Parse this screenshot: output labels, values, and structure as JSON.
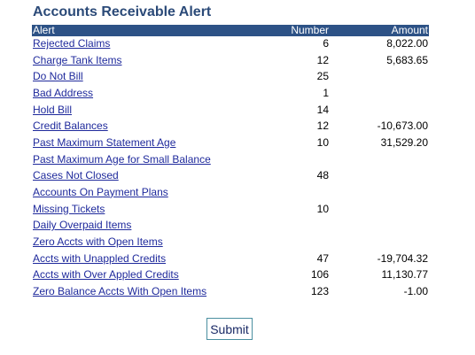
{
  "header": {
    "title": "Accounts Receivable Alert"
  },
  "table": {
    "columns": [
      "Alert",
      "Number",
      "Amount"
    ],
    "rows": [
      [
        "Rejected Claims",
        "6",
        "8,022.00"
      ],
      [
        "Charge Tank Items",
        "12",
        "5,683.65"
      ],
      [
        "Do Not Bill",
        "25",
        null
      ],
      [
        "Bad Address",
        "1",
        null
      ],
      [
        "Hold Bill",
        "14",
        null
      ],
      [
        "Credit Balances",
        "12",
        "-10,673.00"
      ],
      [
        "Past Maximum Statement Age",
        "10",
        "31,529.20"
      ],
      [
        "Past Maximum Age for Small Balance",
        null,
        null
      ],
      [
        "Cases Not Closed",
        "48",
        null
      ],
      [
        "Accounts On Payment Plans",
        null,
        null
      ],
      [
        "Missing Tickets",
        "10",
        null
      ],
      [
        "Daily Overpaid Items",
        null,
        null
      ],
      [
        "Zero Accts with Open Items",
        null,
        null
      ],
      [
        "Accts with Unappled Credits",
        "47",
        "-19,704.32"
      ],
      [
        "Accts with Over Appled Credits",
        "106",
        "11,130.77"
      ],
      [
        "Zero Balance Accts With Open Items",
        "123",
        "-1.00"
      ]
    ]
  },
  "form": {
    "submit": "Submit"
  }
}
